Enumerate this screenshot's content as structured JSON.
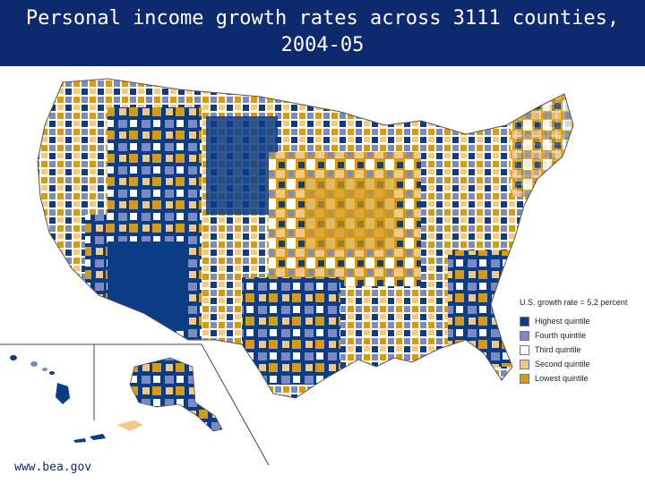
{
  "header": {
    "title": "Personal income growth rates across 3111 counties, 2004-05"
  },
  "legend": {
    "title": "U.S. growth rate = 5.2 percent",
    "items": [
      {
        "label": "Highest quintile",
        "color": "#0b3d86"
      },
      {
        "label": "Fourth quintile",
        "color": "#7b89c4"
      },
      {
        "label": "Third quintile",
        "color": "#ffffff"
      },
      {
        "label": "Second quintile",
        "color": "#f0c987"
      },
      {
        "label": "Lowest quintile",
        "color": "#d49a18"
      }
    ]
  },
  "footer": {
    "source": "www.bea.gov"
  }
}
